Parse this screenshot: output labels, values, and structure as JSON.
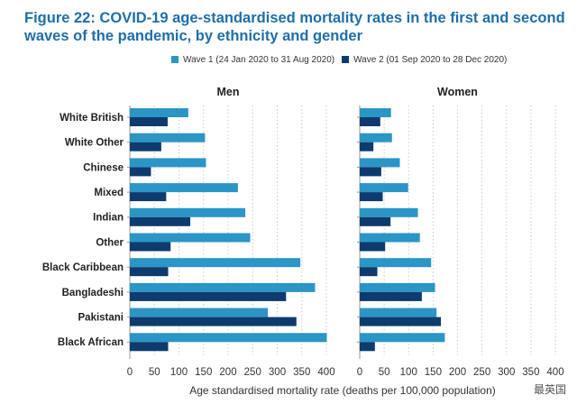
{
  "colors": {
    "wave1": "#2b95c6",
    "wave2": "#0d3b6e",
    "title": "#1d6fa8"
  },
  "watermark": "最英国",
  "chart_data": {
    "type": "bar",
    "orientation": "horizontal",
    "title": "Figure 22: COVID-19 age-standardised mortality rates in the first and second waves of the pandemic, by ethnicity and gender",
    "xlabel": "Age standardised mortality rate (deaths per 100,000 population)",
    "xlim": [
      0,
      400
    ],
    "xticks": [
      0,
      50,
      100,
      150,
      200,
      250,
      300,
      350,
      400
    ],
    "grid": "vertical dotted",
    "legend_placement": "top",
    "legend": [
      "Wave 1 (24 Jan 2020 to 31 Aug 2020)",
      "Wave 2 (01 Sep 2020 to 28 Dec 2020)"
    ],
    "categories": [
      "White British",
      "White Other",
      "Chinese",
      "Mixed",
      "Indian",
      "Other",
      "Black Caribbean",
      "Bangladeshi",
      "Pakistani",
      "Black African"
    ],
    "panels": [
      {
        "title": "Men",
        "series": [
          {
            "name": "Wave 1 (24 Jan 2020 to 31 Aug 2020)",
            "values": [
              119,
              153,
              155,
              220,
              235,
              245,
              347,
              377,
              281,
              401
            ]
          },
          {
            "name": "Wave 2 (01 Sep 2020 to 28 Dec 2020)",
            "values": [
              77,
              64,
              43,
              74,
              123,
              83,
              78,
              318,
              339,
              78
            ]
          }
        ]
      },
      {
        "title": "Women",
        "series": [
          {
            "name": "Wave 1 (24 Jan 2020 to 31 Aug 2020)",
            "values": [
              64,
              66,
              82,
              99,
              119,
              123,
              146,
              154,
              157,
              174
            ]
          },
          {
            "name": "Wave 2 (01 Sep 2020 to 28 Dec 2020)",
            "values": [
              42,
              28,
              44,
              47,
              63,
              52,
              36,
              127,
              166,
              31
            ]
          }
        ]
      }
    ]
  }
}
